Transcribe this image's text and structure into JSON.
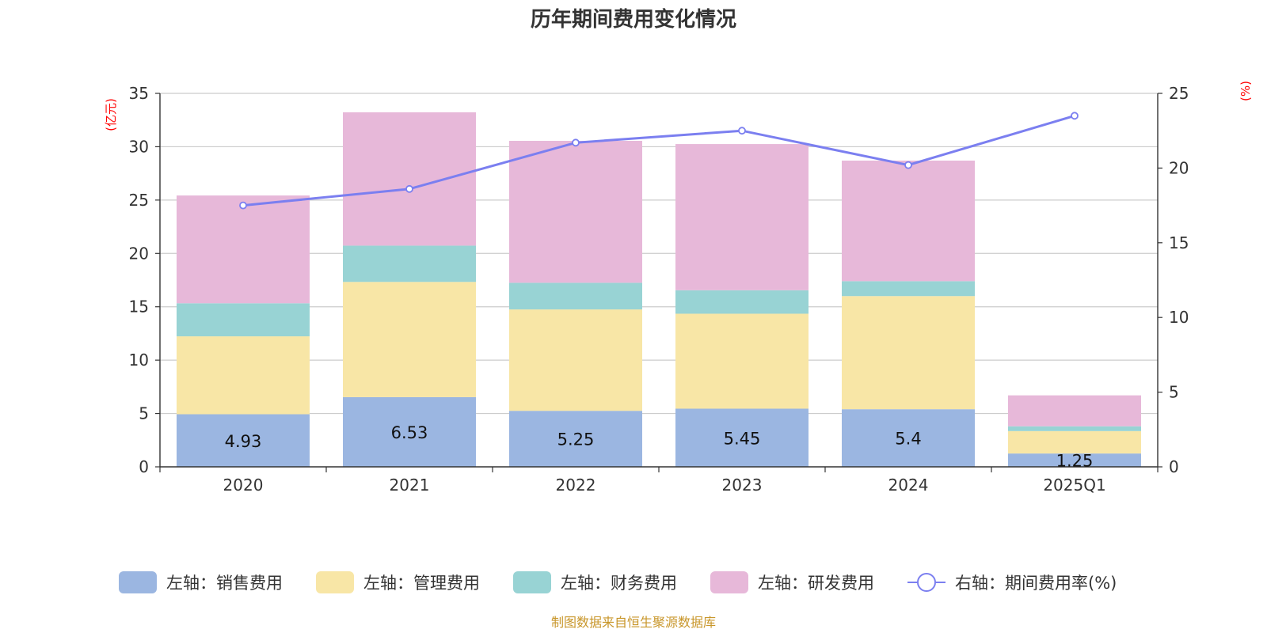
{
  "chart_data": {
    "type": "bar",
    "stacked": true,
    "title": "历年期间费用变化情况",
    "categories": [
      "2020",
      "2021",
      "2022",
      "2023",
      "2024",
      "2025Q1"
    ],
    "left_axis": {
      "label": "(亿元)",
      "ylim": [
        0,
        35
      ],
      "ticks": [
        "0",
        "5",
        "10",
        "15",
        "20",
        "25",
        "30",
        "35"
      ],
      "tick_values": [
        0,
        5,
        10,
        15,
        20,
        25,
        30,
        35
      ]
    },
    "right_axis": {
      "label": "(%)",
      "ylim": [
        0,
        25
      ],
      "ticks": [
        "0",
        "5",
        "10",
        "15",
        "20",
        "25"
      ],
      "tick_values": [
        0,
        5,
        10,
        15,
        20,
        25
      ]
    },
    "series": [
      {
        "name": "左轴：销售费用",
        "color": "#9bb6e1",
        "axis": "left",
        "values": [
          4.93,
          6.53,
          5.25,
          5.45,
          5.4,
          1.25
        ],
        "labels": [
          "4.93",
          "6.53",
          "5.25",
          "5.45",
          "5.4",
          "1.25"
        ]
      },
      {
        "name": "左轴：管理费用",
        "color": "#f8e6a6",
        "axis": "left",
        "values": [
          7.3,
          10.8,
          9.5,
          8.9,
          10.6,
          2.1
        ]
      },
      {
        "name": "左轴：财务费用",
        "color": "#98d3d4",
        "axis": "left",
        "values": [
          3.1,
          3.4,
          2.5,
          2.2,
          1.4,
          0.45
        ]
      },
      {
        "name": "左轴：研发费用",
        "color": "#e7b8d9",
        "axis": "left",
        "values": [
          10.1,
          12.5,
          13.3,
          13.7,
          11.3,
          2.9
        ]
      }
    ],
    "line_series": {
      "name": "右轴：期间费用率(%)",
      "color": "#7b7ff0",
      "axis": "right",
      "type": "line",
      "values": [
        17.5,
        18.6,
        21.7,
        22.5,
        20.2,
        23.5
      ]
    },
    "legend_position": "bottom"
  },
  "source_text": "制图数据来自恒生聚源数据库"
}
